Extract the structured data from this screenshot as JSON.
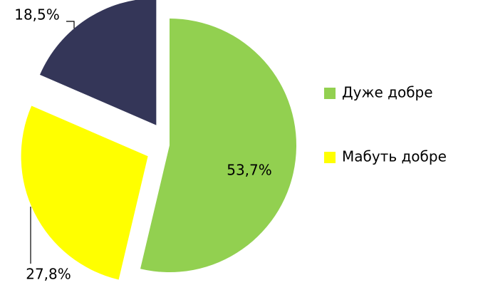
{
  "chart_data": {
    "type": "pie",
    "categories": [
      "Дуже добре",
      "Мабуть добре",
      null
    ],
    "values": [
      53.7,
      27.8,
      18.5
    ],
    "value_labels": [
      "53,7%",
      "27,8%",
      "18,5%"
    ],
    "colors": [
      "#92d050",
      "#ffff00",
      "#343658"
    ],
    "legend": "right"
  }
}
